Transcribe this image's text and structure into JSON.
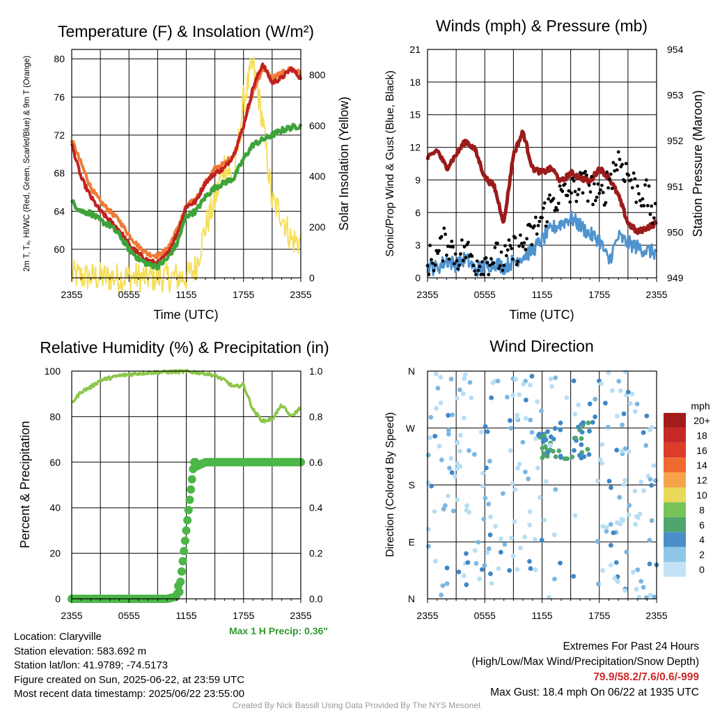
{
  "time_ticks": [
    "2355",
    "0555",
    "1155",
    "1755",
    "2355"
  ],
  "panels": {
    "temp": {
      "title": "Temperature (F) & Insolation (W/m²)",
      "ylabel_left": "2m T, Tₐ, HI/WC (Red, Green, Scarlet/Blue) & 9m T (Orange)",
      "ylabel_right": "Solar Insolation (Yellow)",
      "xlabel": "Time (UTC)",
      "yticks_left": [
        "60",
        "64",
        "68",
        "72",
        "76",
        "80"
      ],
      "yticks_right": [
        "0",
        "200",
        "400",
        "600",
        "800"
      ]
    },
    "wind": {
      "title": "Winds (mph) & Pressure (mb)",
      "ylabel_left": "Sonic/Prop Wind & Gust (Blue, Black)",
      "ylabel_right": "Station Pressure (Maroon)",
      "xlabel": "Time (UTC)",
      "yticks_left": [
        "0",
        "3",
        "6",
        "9",
        "12",
        "15",
        "18",
        "21"
      ],
      "yticks_right": [
        "949",
        "950",
        "951",
        "952",
        "953",
        "954"
      ]
    },
    "rh": {
      "title": "Relative Humidity (%) & Precipitation (in)",
      "ylabel_left": "Percent & Precipitation",
      "yticks_left": [
        "0",
        "20",
        "40",
        "60",
        "80",
        "100"
      ],
      "yticks_right": [
        "0.0",
        "0.2",
        "0.4",
        "0.6",
        "0.8",
        "1.0"
      ],
      "max_precip": "Max 1 H Precip: 0.36\""
    },
    "dir": {
      "title": "Wind Direction",
      "ylabel_left": "Direction (Colored By Speed)",
      "yticks_left": [
        "N",
        "E",
        "S",
        "W",
        "N"
      ],
      "legend_title": "mph",
      "legend_labels": [
        "20+",
        "18",
        "16",
        "14",
        "12",
        "10",
        "8",
        "6",
        "4",
        "2",
        "0"
      ],
      "legend_colors": [
        "#a31c1c",
        "#c62828",
        "#dc3d28",
        "#ef6a2e",
        "#f7a34a",
        "#ead85a",
        "#78c25a",
        "#4ea66c",
        "#4a8fcc",
        "#8ec6e8",
        "#c3e3f5"
      ]
    }
  },
  "station": {
    "location": "Location: Claryville",
    "elevation": "Station elevation: 583.692 m",
    "latlon": "Station lat/lon: 41.9789; -74.5173",
    "created": "Figure created on Sun, 2025-06-22, at 23:59 UTC",
    "recent": "Most recent data timestamp: 2025/06/22 23:55:00"
  },
  "extremes": {
    "heading": "Extremes For Past 24 Hours",
    "subheading": "(High/Low/Max Wind/Precipitation/Snow Depth)",
    "values": "79.9/58.2/7.6/0.6/-999",
    "max_gust": "Max Gust: 18.4 mph On 06/22 at 1935 UTC"
  },
  "credit": "Created By Nick Bassill Using Data Provided By The NYS Mesonet",
  "chart_data": [
    {
      "type": "line",
      "x_hours_utc": [
        0,
        1,
        2,
        3,
        4,
        5,
        6,
        7,
        8,
        9,
        10,
        11,
        12,
        13,
        14,
        15,
        16,
        17,
        18,
        19,
        20,
        21,
        22,
        23,
        24
      ],
      "ylim": [
        57,
        81
      ],
      "y2lim": [
        0,
        900
      ],
      "series": [
        {
          "values": [
            71.0,
            67.5,
            65.5,
            64.0,
            63.0,
            62.0,
            60.5,
            59.5,
            58.8,
            58.5,
            59.5,
            61.5,
            64.5,
            65.0,
            67.0,
            68.0,
            68.5,
            70.0,
            73.0,
            77.0,
            79.5,
            77.5,
            78.0,
            79.0,
            78.0
          ]
        },
        {
          "values": [
            65.0,
            64.0,
            63.8,
            63.0,
            62.5,
            61.5,
            60.0,
            59.0,
            58.4,
            58.2,
            59.0,
            60.5,
            63.5,
            64.0,
            65.5,
            66.5,
            67.0,
            67.5,
            69.5,
            71.0,
            71.5,
            72.0,
            72.5,
            72.8,
            73.0
          ]
        },
        {
          "values": [
            71.5,
            69.0,
            66.5,
            65.0,
            64.0,
            63.0,
            61.5,
            60.3,
            59.5,
            59.3,
            60.0,
            62.0,
            64.5,
            65.3,
            67.0,
            68.5,
            69.0,
            70.0,
            73.0,
            76.5,
            79.0,
            78.0,
            78.5,
            79.0,
            78.5
          ]
        },
        {
          "values": [
            14,
            5,
            3,
            2,
            2,
            2,
            2,
            2,
            2,
            2,
            2,
            2,
            3,
            40,
            200,
            300,
            450,
            380,
            700,
            840,
            620,
            300,
            250,
            150,
            140
          ]
        }
      ]
    },
    {
      "type": "line",
      "x_hours_utc": [
        0,
        1,
        2,
        3,
        4,
        5,
        6,
        7,
        8,
        9,
        10,
        11,
        12,
        13,
        14,
        15,
        16,
        17,
        18,
        19,
        20,
        21,
        22,
        23,
        24
      ],
      "ylim": [
        0,
        21
      ],
      "y2lim": [
        949,
        954
      ],
      "series": [
        {
          "values": [
            1.0,
            0.9,
            1.6,
            1.2,
            1.8,
            0.8,
            1.0,
            1.4,
            1.0,
            1.5,
            2.0,
            2.5,
            3.5,
            4.5,
            5.0,
            5.5,
            4.8,
            4.0,
            3.5,
            1.5,
            3.8,
            3.2,
            2.8,
            2.5,
            2.3
          ]
        },
        {
          "values": [
            1.5,
            2.0,
            3.5,
            2.0,
            2.5,
            1.5,
            1.5,
            2.0,
            1.5,
            2.5,
            3.0,
            4.0,
            5.5,
            7.0,
            7.5,
            7.8,
            8.5,
            8.5,
            7.0,
            9.0,
            11.0,
            9.5,
            8.0,
            7.5,
            5.0
          ]
        },
        {
          "values": [
            951.6,
            951.8,
            951.4,
            951.7,
            952.0,
            951.8,
            951.2,
            951.0,
            950.2,
            951.7,
            952.2,
            951.4,
            951.3,
            951.4,
            951.1,
            951.3,
            951.2,
            951.1,
            951.4,
            951.2,
            950.8,
            950.2,
            950.0,
            950.1,
            950.2
          ]
        }
      ]
    },
    {
      "type": "line",
      "x_hours_utc": [
        0,
        1,
        2,
        3,
        4,
        5,
        6,
        7,
        8,
        9,
        10,
        11,
        12,
        13,
        14,
        15,
        16,
        17,
        18,
        19,
        20,
        21,
        22,
        23,
        24
      ],
      "ylim": [
        0,
        100
      ],
      "y2lim": [
        0,
        1.0
      ],
      "series": [
        {
          "values": [
            86,
            91,
            93,
            96,
            97,
            98,
            98.5,
            99,
            99.3,
            99.5,
            99.6,
            99.7,
            99.8,
            99.5,
            99.0,
            98.0,
            96.0,
            93.0,
            94.0,
            83.0,
            78.0,
            79.0,
            85.0,
            80.0,
            84.0
          ]
        },
        {
          "values": [
            0,
            0,
            0,
            0,
            0,
            0,
            0,
            0,
            0,
            0,
            0,
            0.01,
            0.3,
            0.58,
            0.6,
            0.6,
            0.6,
            0.6,
            0.6,
            0.6,
            0.6,
            0.6,
            0.6,
            0.6,
            0.6
          ]
        }
      ]
    },
    {
      "type": "scatter",
      "y_categories": [
        "N",
        "E",
        "S",
        "W",
        "N"
      ],
      "ylim": [
        0,
        360
      ],
      "color_scale_mph": [
        0,
        2,
        4,
        6,
        8,
        10,
        12,
        14,
        16,
        18,
        20
      ]
    }
  ]
}
